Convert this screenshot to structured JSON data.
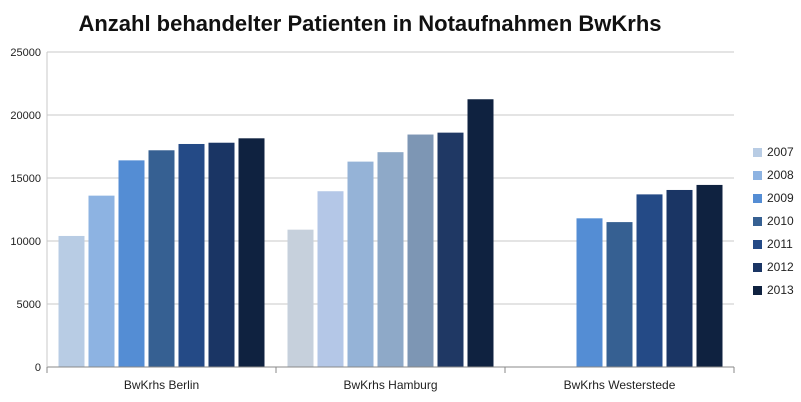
{
  "chart_data": {
    "type": "bar",
    "title": "Anzahl behandelter Patienten in Notaufnahmen BwKrhs",
    "xlabel": "",
    "ylabel": "",
    "ylim": [
      0,
      25000
    ],
    "yticks": [
      0,
      5000,
      10000,
      15000,
      20000,
      25000
    ],
    "grid": true,
    "legend_position": "right",
    "categories": [
      "BwKrhs Berlin",
      "BwKrhs Hamburg",
      "BwKrhs Westerstede"
    ],
    "series": [
      {
        "name": "2007",
        "values": [
          10400,
          10900,
          null
        ]
      },
      {
        "name": "2008",
        "values": [
          13600,
          13950,
          null
        ]
      },
      {
        "name": "2009",
        "values": [
          16400,
          16300,
          11800
        ]
      },
      {
        "name": "2010",
        "values": [
          17200,
          17050,
          11500
        ]
      },
      {
        "name": "2011",
        "values": [
          17700,
          18450,
          13700
        ]
      },
      {
        "name": "2012",
        "values": [
          17800,
          18600,
          14050
        ]
      },
      {
        "name": "2013",
        "values": [
          18150,
          21250,
          14450
        ]
      }
    ],
    "group_colors": [
      [
        "#b8cce4",
        "#8db3e2",
        "#548dd4",
        "#366092",
        "#244a86",
        "#1a3564",
        "#0f2240"
      ],
      [
        "#c6d0dc",
        "#b4c7e7",
        "#95b3d7",
        "#8ea9c8",
        "#7d96b4",
        "#1f3864",
        "#0f2240"
      ],
      [
        "#b8cce4",
        "#8db3e2",
        "#548dd4",
        "#366092",
        "#244a86",
        "#1a3564",
        "#0f2240"
      ]
    ],
    "legend_colors": [
      "#b8cce4",
      "#8db3e2",
      "#548dd4",
      "#366092",
      "#244a86",
      "#1a3564",
      "#0f2240"
    ]
  }
}
